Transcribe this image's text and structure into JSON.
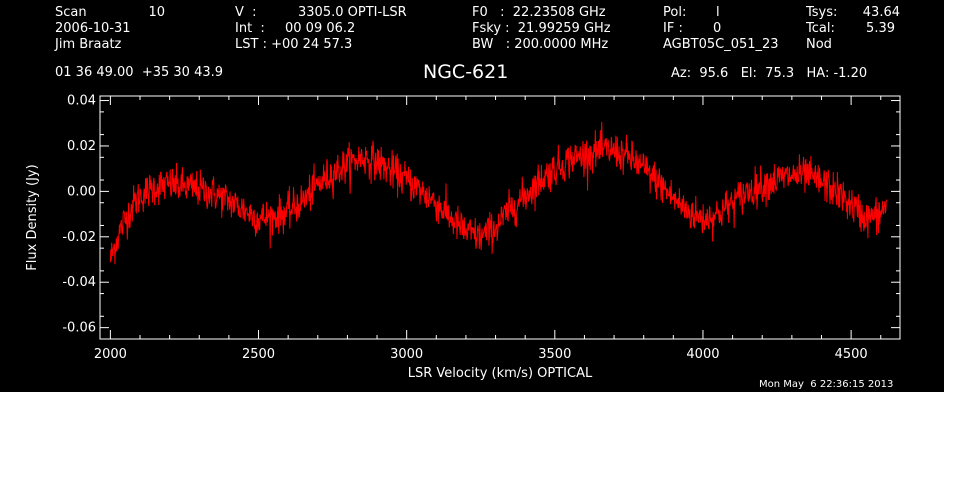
{
  "header": {
    "col1": {
      "scan_label": "Scan",
      "scan_value": "10",
      "date": "2006-10-31",
      "observer": "Jim Braatz"
    },
    "col2": {
      "v_label": "V  :",
      "v_value": "3305.0 OPTI-LSR",
      "int_label": "Int  :",
      "int_value": "00 09 06.2",
      "lst": "LST : +00 24 57.3"
    },
    "col3": {
      "f0": "F0   :  22.23508 GHz",
      "fsky": "Fsky :  21.99259 GHz",
      "bw": "BW   : 200.0000 MHz"
    },
    "col4": {
      "pol_label": "Pol:",
      "pol_value": "l",
      "if_label": "IF :",
      "if_value": "0",
      "project": "AGBT05C_051_23"
    },
    "col5": {
      "tsys_label": "Tsys:",
      "tsys_value": "43.64",
      "tcal_label": "Tcal:",
      "tcal_value": "5.39",
      "mode": "Nod"
    },
    "coords": "01 36 49.00  +35 30 43.9",
    "object": "NGC-621",
    "pointing": "Az:  95.6   El:  75.3   HA: -1.20",
    "timestamp": "Mon May  6 22:36:15 2013"
  },
  "colors": {
    "background": "#000000",
    "axes": "#ffffff",
    "trace": "#ff0000",
    "page": "#ffffff"
  },
  "chart_data": {
    "type": "line",
    "title": "NGC-621",
    "xlabel": "LSR Velocity (km/s) OPTICAL",
    "ylabel": "Flux Density (Jy)",
    "xlim": [
      1965,
      4665
    ],
    "ylim": [
      -0.065,
      0.042
    ],
    "x_ticks": [
      2000,
      2500,
      3000,
      3500,
      4000,
      4500
    ],
    "y_ticks": [
      -0.06,
      -0.04,
      -0.02,
      0.0,
      0.02,
      0.04
    ],
    "x_tick_labels": [
      "2000",
      "2500",
      "3000",
      "3500",
      "4000",
      "4500"
    ],
    "y_tick_labels": [
      "-0.06",
      "-0.04",
      "-0.02",
      "0.00",
      "0.02",
      "0.04"
    ],
    "grid": false,
    "legend": false,
    "series": [
      {
        "color": "#ff0000",
        "x": [
          2000,
          2020,
          2040,
          2060,
          2080,
          2100,
          2150,
          2200,
          2250,
          2300,
          2350,
          2400,
          2450,
          2500,
          2550,
          2600,
          2650,
          2700,
          2750,
          2800,
          2850,
          2900,
          2950,
          3000,
          3050,
          3100,
          3150,
          3200,
          3250,
          3300,
          3350,
          3400,
          3450,
          3500,
          3550,
          3600,
          3650,
          3700,
          3750,
          3800,
          3850,
          3900,
          3950,
          4000,
          4050,
          4100,
          4150,
          4200,
          4250,
          4300,
          4350,
          4400,
          4450,
          4500,
          4550,
          4600,
          4620
        ],
        "y": [
          -0.03,
          -0.022,
          -0.015,
          -0.01,
          -0.005,
          -0.002,
          0.002,
          0.003,
          0.002,
          0.001,
          -0.001,
          -0.004,
          -0.008,
          -0.012,
          -0.011,
          -0.009,
          -0.004,
          0.003,
          0.008,
          0.012,
          0.015,
          0.013,
          0.009,
          0.005,
          0.0,
          -0.005,
          -0.012,
          -0.018,
          -0.02,
          -0.016,
          -0.008,
          -0.002,
          0.005,
          0.01,
          0.014,
          0.016,
          0.018,
          0.018,
          0.015,
          0.01,
          0.004,
          -0.003,
          -0.009,
          -0.012,
          -0.01,
          -0.005,
          0.0,
          0.003,
          0.005,
          0.007,
          0.007,
          0.004,
          0.0,
          -0.006,
          -0.012,
          -0.01,
          -0.005
        ],
        "noise_sigma": 0.004
      }
    ]
  }
}
